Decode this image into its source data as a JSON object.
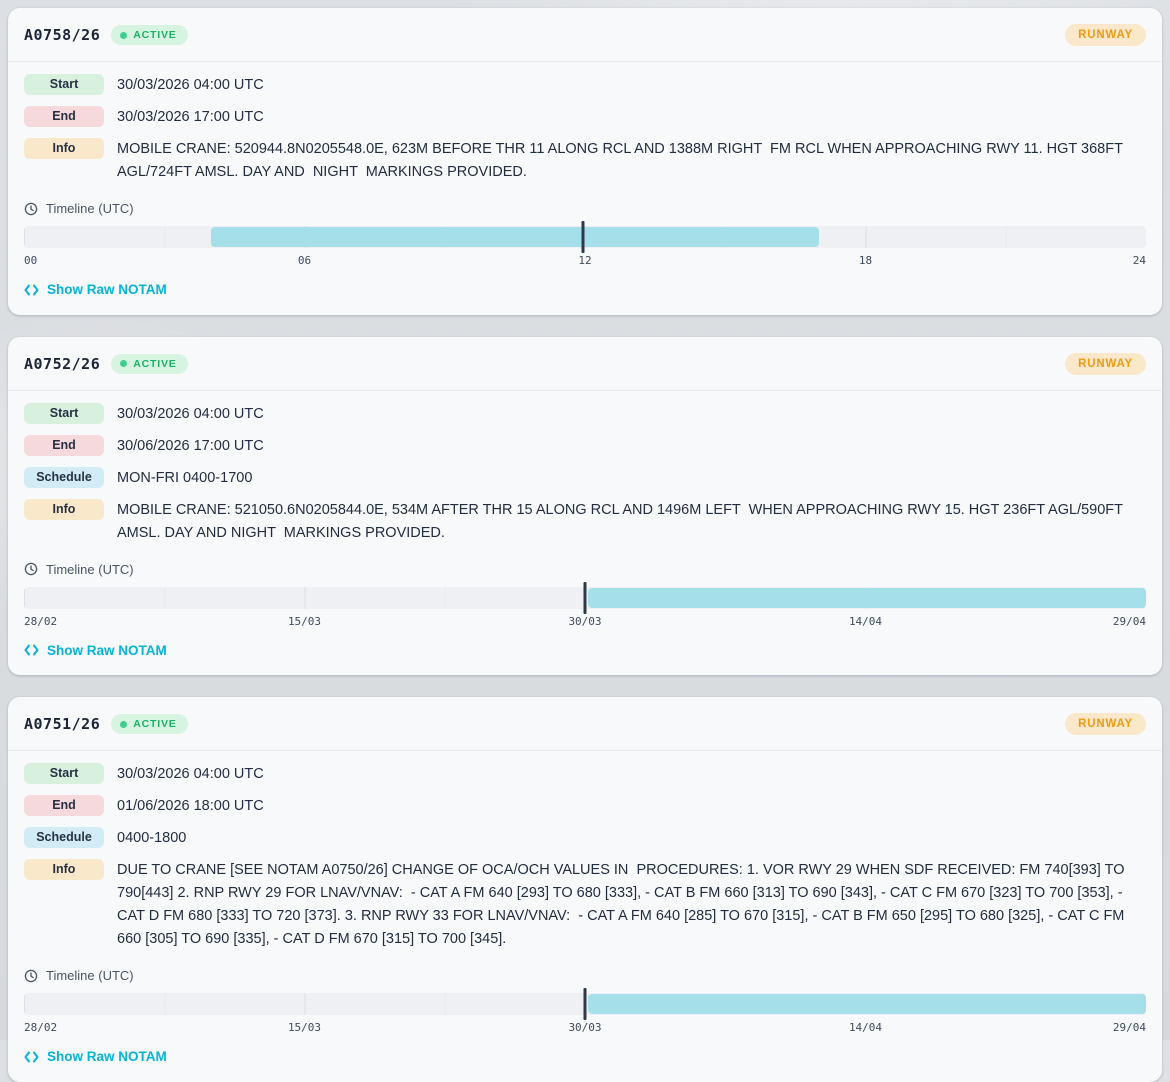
{
  "shared": {
    "timeline_label": "Timeline (UTC)",
    "show_raw_label": "Show Raw NOTAM"
  },
  "colors": {
    "status_active": "#17b266",
    "category_runway": "#f09a12",
    "timeline_bar": "#a5dfe9",
    "now_marker": "#2e3947",
    "link": "#00b5d9"
  },
  "cards": [
    {
      "id": "A0758/26",
      "status": "ACTIVE",
      "category": "RUNWAY",
      "fields": [
        {
          "label": "Start",
          "type": "start",
          "value": "30/03/2026 04:00 UTC"
        },
        {
          "label": "End",
          "type": "end",
          "value": "30/03/2026 17:00 UTC"
        },
        {
          "label": "Info",
          "type": "info",
          "value": "MOBILE CRANE: 520944.8N0205548.0E, 623M BEFORE THR 11 ALONG RCL AND 1388M RIGHT  FM RCL WHEN APPROACHING RWY 11. HGT 368FT AGL/724FT AMSL. DAY AND  NIGHT  MARKINGS PROVIDED."
        }
      ],
      "timeline": {
        "ticks": [
          "00",
          "06",
          "12",
          "18",
          "24"
        ],
        "bar_start_pct": 16.7,
        "bar_end_pct": 70.9,
        "now_pct": 49.8
      }
    },
    {
      "id": "A0752/26",
      "status": "ACTIVE",
      "category": "RUNWAY",
      "fields": [
        {
          "label": "Start",
          "type": "start",
          "value": "30/03/2026 04:00 UTC"
        },
        {
          "label": "End",
          "type": "end",
          "value": "30/06/2026 17:00 UTC"
        },
        {
          "label": "Schedule",
          "type": "schedule",
          "value": "MON-FRI 0400-1700"
        },
        {
          "label": "Info",
          "type": "info",
          "value": "MOBILE CRANE: 521050.6N0205844.0E, 534M AFTER THR 15 ALONG RCL AND 1496M LEFT  WHEN APPROACHING RWY 15. HGT 236FT AGL/590FT AMSL. DAY AND NIGHT  MARKINGS PROVIDED."
        }
      ],
      "timeline": {
        "ticks": [
          "28/02",
          "15/03",
          "30/03",
          "14/04",
          "29/04"
        ],
        "bar_start_pct": 50.3,
        "bar_end_pct": 100,
        "now_pct": 50.0
      }
    },
    {
      "id": "A0751/26",
      "status": "ACTIVE",
      "category": "RUNWAY",
      "fields": [
        {
          "label": "Start",
          "type": "start",
          "value": "30/03/2026 04:00 UTC"
        },
        {
          "label": "End",
          "type": "end",
          "value": "01/06/2026 18:00 UTC"
        },
        {
          "label": "Schedule",
          "type": "schedule",
          "value": "0400-1800"
        },
        {
          "label": "Info",
          "type": "info",
          "value": "DUE TO CRANE [SEE NOTAM A0750/26] CHANGE OF OCA/OCH VALUES IN  PROCEDURES: 1. VOR RWY 29 WHEN SDF RECEIVED: FM 740[393] TO 790[443] 2. RNP RWY 29 FOR LNAV/VNAV:  - CAT A FM 640 [293] TO 680 [333], - CAT B FM 660 [313] TO 690 [343], - CAT C FM 670 [323] TO 700 [353], - CAT D FM 680 [333] TO 720 [373]. 3. RNP RWY 33 FOR LNAV/VNAV:  - CAT A FM 640 [285] TO 670 [315], - CAT B FM 650 [295] TO 680 [325], - CAT C FM 660 [305] TO 690 [335], - CAT D FM 670 [315] TO 700 [345]."
        }
      ],
      "timeline": {
        "ticks": [
          "28/02",
          "15/03",
          "30/03",
          "14/04",
          "29/04"
        ],
        "bar_start_pct": 50.3,
        "bar_end_pct": 100,
        "now_pct": 50.0
      }
    }
  ]
}
